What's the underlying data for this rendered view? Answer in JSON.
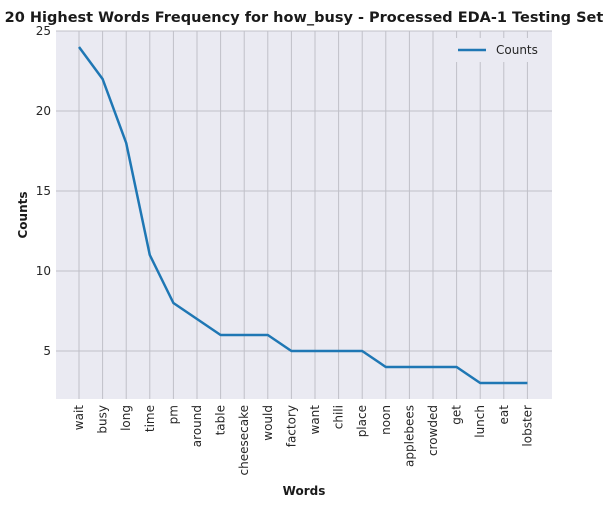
{
  "chart_data": {
    "type": "line",
    "title": "20 Highest Words Frequency for how_busy - Processed EDA-1 Testing Set",
    "xlabel": "Words",
    "ylabel": "Counts",
    "categories": [
      "wait",
      "busy",
      "long",
      "time",
      "pm",
      "around",
      "table",
      "cheesecake",
      "would",
      "factory",
      "want",
      "chili",
      "place",
      "noon",
      "applebees",
      "crowded",
      "get",
      "lunch",
      "eat",
      "lobster"
    ],
    "series": [
      {
        "name": "Counts",
        "values": [
          24,
          22,
          18,
          11,
          8,
          7,
          6,
          6,
          6,
          5,
          5,
          5,
          5,
          4,
          4,
          4,
          4,
          3,
          3,
          3
        ],
        "color": "#1f77b4"
      }
    ],
    "ylim": [
      2,
      25
    ],
    "yticks": [
      5,
      10,
      15,
      20,
      25
    ],
    "grid": true,
    "legend": "top-right",
    "background": "#eaeaf2",
    "grid_color": "#c0c0c8"
  }
}
